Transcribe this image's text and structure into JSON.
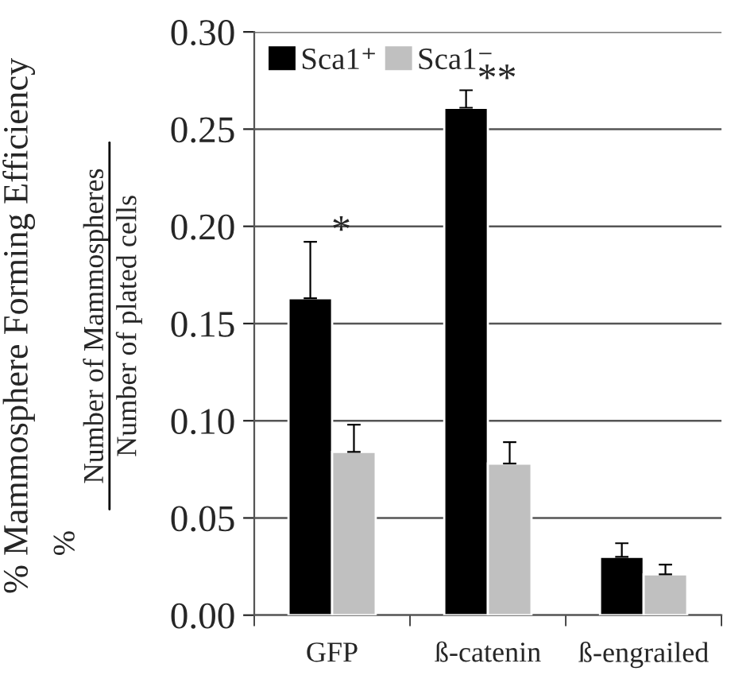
{
  "chart_data": {
    "type": "bar",
    "ylabel": "% Mammosphere Forming Efficiency",
    "categories": [
      "GFP",
      "ß-catenin",
      "ß-engrailed"
    ],
    "series": [
      {
        "name": "Sca1⁺",
        "color": "#000000",
        "values": [
          0.163,
          0.261,
          0.03
        ],
        "errors": [
          [
            0.163,
            0.192
          ],
          [
            0.261,
            0.27
          ],
          [
            0.03,
            0.037
          ]
        ]
      },
      {
        "name": "Sca1⁻",
        "color": "#c0c0c0",
        "values": [
          0.084,
          0.078,
          0.021
        ],
        "errors": [
          [
            0.084,
            0.098
          ],
          [
            0.078,
            0.089
          ],
          [
            0.021,
            0.026
          ]
        ]
      }
    ],
    "ylim": [
      0,
      0.3
    ],
    "yticks": [
      {
        "value": 0,
        "label": "0.00"
      },
      {
        "value": 0.05,
        "label": "0.05"
      },
      {
        "value": 0.1,
        "label": "0.10"
      },
      {
        "value": 0.15,
        "label": "0.15"
      },
      {
        "value": 0.2,
        "label": "0.20"
      },
      {
        "value": 0.25,
        "label": "0.25"
      },
      {
        "value": 0.3,
        "label": "0.30"
      }
    ],
    "grid": "y",
    "legend": "top left",
    "annotations": [
      "*",
      "**",
      "%",
      "Number of Mammospheres",
      "Number of plated cells"
    ]
  }
}
